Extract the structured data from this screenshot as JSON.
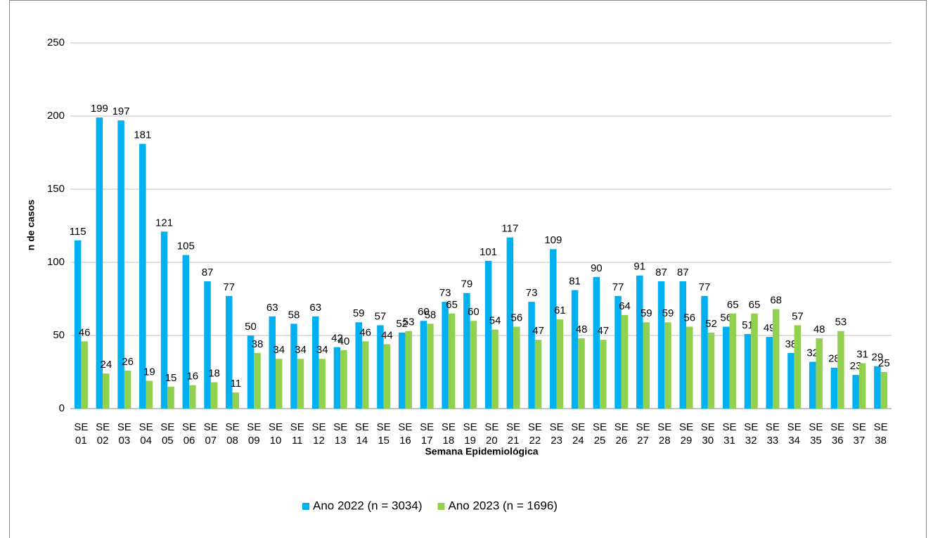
{
  "chart_data": {
    "type": "bar",
    "x_label": "Semana Epidemiológica",
    "y_label": "n de casos",
    "categories": [
      "SE 01",
      "SE 02",
      "SE 03",
      "SE 04",
      "SE 05",
      "SE 06",
      "SE 07",
      "SE 08",
      "SE 09",
      "SE 10",
      "SE 11",
      "SE 12",
      "SE 13",
      "SE 14",
      "SE 15",
      "SE 16",
      "SE 17",
      "SE 18",
      "SE 19",
      "SE 20",
      "SE 21",
      "SE 22",
      "SE 23",
      "SE 24",
      "SE 25",
      "SE 26",
      "SE 27",
      "SE 28",
      "SE 29",
      "SE 30",
      "SE 31",
      "SE 32",
      "SE 33",
      "SE 34",
      "SE 35",
      "SE 36",
      "SE 37",
      "SE 38"
    ],
    "series": [
      {
        "name": "Ano 2022 (n = 3034)",
        "color": "#00b0f0",
        "values": [
          115,
          199,
          197,
          181,
          121,
          105,
          87,
          77,
          50,
          63,
          58,
          63,
          42,
          59,
          57,
          52,
          60,
          73,
          79,
          101,
          117,
          73,
          109,
          81,
          90,
          77,
          91,
          87,
          87,
          77,
          56,
          51,
          49,
          38,
          32,
          28,
          23,
          29
        ]
      },
      {
        "name": "Ano 2023 (n = 1696)",
        "color": "#92d050",
        "values": [
          46,
          24,
          26,
          19,
          15,
          16,
          18,
          11,
          38,
          34,
          34,
          34,
          40,
          46,
          44,
          53,
          58,
          65,
          60,
          54,
          56,
          47,
          61,
          48,
          47,
          64,
          59,
          59,
          56,
          52,
          65,
          65,
          68,
          57,
          48,
          53,
          31,
          25
        ]
      }
    ],
    "ylim": [
      0,
      250
    ],
    "yticks": [
      0,
      50,
      100,
      150,
      200,
      250
    ],
    "grid": true,
    "legend": "bottom"
  }
}
